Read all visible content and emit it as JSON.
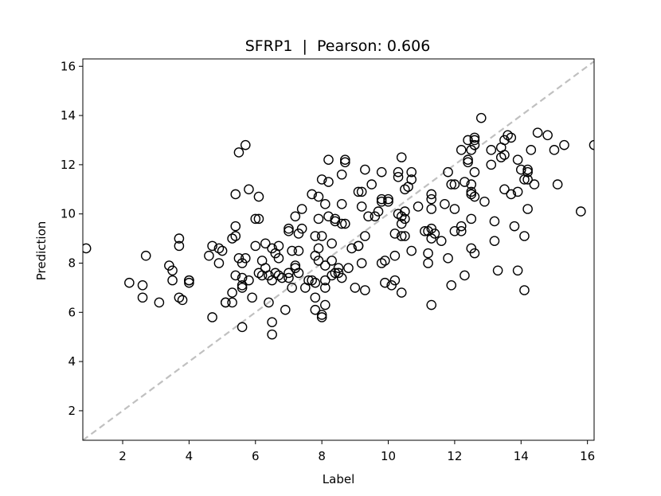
{
  "chart_data": {
    "type": "scatter",
    "title": "SFRP1  |  Pearson: 0.606",
    "xlabel": "Label",
    "ylabel": "Prediction",
    "xlim": [
      0.8,
      16.2
    ],
    "ylim": [
      0.8,
      16.3
    ],
    "xticks": [
      2,
      4,
      6,
      8,
      10,
      12,
      14,
      16
    ],
    "yticks": [
      2,
      4,
      6,
      8,
      10,
      12,
      14,
      16
    ],
    "grid": false,
    "reference_line": {
      "style": "dashed",
      "color": "#c0c0c0",
      "from": [
        0.8,
        0.8
      ],
      "to": [
        16.2,
        16.2
      ]
    },
    "marker": {
      "shape": "open-circle",
      "color": "#000000"
    },
    "points": [
      [
        0.9,
        8.6
      ],
      [
        2.2,
        7.2
      ],
      [
        2.6,
        7.1
      ],
      [
        2.6,
        6.6
      ],
      [
        2.7,
        8.3
      ],
      [
        3.1,
        6.4
      ],
      [
        3.4,
        7.9
      ],
      [
        3.5,
        7.7
      ],
      [
        3.5,
        7.3
      ],
      [
        3.7,
        6.6
      ],
      [
        3.7,
        8.7
      ],
      [
        3.7,
        9.0
      ],
      [
        3.8,
        6.5
      ],
      [
        4.0,
        7.3
      ],
      [
        4.0,
        7.2
      ],
      [
        4.0,
        7.3
      ],
      [
        4.6,
        8.3
      ],
      [
        4.7,
        8.7
      ],
      [
        4.7,
        5.8
      ],
      [
        4.9,
        8.6
      ],
      [
        4.9,
        8.0
      ],
      [
        5.0,
        8.5
      ],
      [
        5.1,
        6.4
      ],
      [
        5.1,
        6.4
      ],
      [
        5.3,
        6.4
      ],
      [
        5.3,
        9.0
      ],
      [
        5.3,
        6.8
      ],
      [
        5.4,
        9.1
      ],
      [
        5.4,
        9.5
      ],
      [
        5.4,
        10.8
      ],
      [
        5.4,
        7.5
      ],
      [
        5.5,
        12.5
      ],
      [
        5.5,
        8.2
      ],
      [
        5.6,
        8.0
      ],
      [
        5.6,
        7.0
      ],
      [
        5.6,
        5.4
      ],
      [
        5.6,
        7.4
      ],
      [
        5.6,
        7.1
      ],
      [
        5.7,
        12.8
      ],
      [
        5.7,
        8.2
      ],
      [
        5.8,
        7.3
      ],
      [
        5.8,
        11.0
      ],
      [
        5.9,
        6.6
      ],
      [
        6.0,
        8.7
      ],
      [
        6.0,
        9.8
      ],
      [
        6.1,
        9.8
      ],
      [
        6.1,
        10.7
      ],
      [
        6.1,
        7.6
      ],
      [
        6.2,
        7.5
      ],
      [
        6.2,
        8.1
      ],
      [
        6.3,
        8.8
      ],
      [
        6.3,
        7.8
      ],
      [
        6.4,
        6.4
      ],
      [
        6.4,
        7.5
      ],
      [
        6.5,
        7.3
      ],
      [
        6.5,
        8.6
      ],
      [
        6.5,
        5.6
      ],
      [
        6.5,
        5.1
      ],
      [
        6.6,
        7.6
      ],
      [
        6.6,
        8.4
      ],
      [
        6.7,
        8.7
      ],
      [
        6.7,
        8.2
      ],
      [
        6.7,
        7.5
      ],
      [
        6.8,
        7.4
      ],
      [
        6.9,
        6.1
      ],
      [
        7.0,
        7.4
      ],
      [
        7.0,
        7.6
      ],
      [
        7.0,
        9.4
      ],
      [
        7.0,
        9.3
      ],
      [
        7.1,
        7.0
      ],
      [
        7.1,
        8.5
      ],
      [
        7.2,
        9.9
      ],
      [
        7.2,
        7.9
      ],
      [
        7.2,
        7.8
      ],
      [
        7.3,
        7.6
      ],
      [
        7.3,
        8.5
      ],
      [
        7.3,
        9.2
      ],
      [
        7.4,
        9.4
      ],
      [
        7.4,
        10.2
      ],
      [
        7.5,
        7.0
      ],
      [
        7.6,
        7.3
      ],
      [
        7.7,
        10.8
      ],
      [
        7.7,
        7.3
      ],
      [
        7.8,
        8.3
      ],
      [
        7.8,
        9.1
      ],
      [
        7.8,
        7.2
      ],
      [
        7.8,
        6.1
      ],
      [
        7.8,
        6.6
      ],
      [
        7.9,
        10.7
      ],
      [
        7.9,
        9.8
      ],
      [
        7.9,
        8.6
      ],
      [
        7.9,
        8.1
      ],
      [
        8.0,
        5.9
      ],
      [
        8.0,
        5.8
      ],
      [
        8.0,
        9.1
      ],
      [
        8.0,
        11.4
      ],
      [
        8.1,
        10.4
      ],
      [
        8.1,
        7.9
      ],
      [
        8.1,
        7.3
      ],
      [
        8.1,
        7.0
      ],
      [
        8.1,
        6.3
      ],
      [
        8.2,
        11.3
      ],
      [
        8.2,
        12.2
      ],
      [
        8.2,
        9.9
      ],
      [
        8.3,
        8.8
      ],
      [
        8.3,
        8.1
      ],
      [
        8.3,
        7.5
      ],
      [
        8.4,
        9.8
      ],
      [
        8.4,
        9.7
      ],
      [
        8.4,
        7.6
      ],
      [
        8.5,
        7.8
      ],
      [
        8.5,
        7.6
      ],
      [
        8.6,
        7.4
      ],
      [
        8.6,
        9.6
      ],
      [
        8.6,
        11.6
      ],
      [
        8.6,
        10.4
      ],
      [
        8.7,
        12.1
      ],
      [
        8.7,
        12.2
      ],
      [
        8.7,
        9.6
      ],
      [
        8.8,
        7.8
      ],
      [
        8.9,
        8.6
      ],
      [
        9.0,
        7.0
      ],
      [
        9.1,
        10.9
      ],
      [
        9.1,
        8.7
      ],
      [
        9.1,
        8.7
      ],
      [
        9.2,
        10.9
      ],
      [
        9.2,
        10.3
      ],
      [
        9.2,
        8.0
      ],
      [
        9.3,
        11.8
      ],
      [
        9.3,
        9.1
      ],
      [
        9.3,
        6.9
      ],
      [
        9.4,
        9.9
      ],
      [
        9.5,
        11.2
      ],
      [
        9.6,
        9.9
      ],
      [
        9.7,
        10.1
      ],
      [
        9.8,
        11.7
      ],
      [
        9.8,
        10.6
      ],
      [
        9.8,
        10.5
      ],
      [
        9.8,
        8.0
      ],
      [
        9.9,
        7.2
      ],
      [
        9.9,
        8.1
      ],
      [
        10.0,
        10.5
      ],
      [
        10.0,
        10.6
      ],
      [
        10.1,
        7.1
      ],
      [
        10.2,
        8.3
      ],
      [
        10.2,
        9.2
      ],
      [
        10.2,
        7.3
      ],
      [
        10.3,
        11.7
      ],
      [
        10.3,
        11.5
      ],
      [
        10.3,
        10.0
      ],
      [
        10.4,
        9.6
      ],
      [
        10.4,
        9.1
      ],
      [
        10.4,
        12.3
      ],
      [
        10.4,
        9.9
      ],
      [
        10.4,
        6.8
      ],
      [
        10.5,
        10.1
      ],
      [
        10.5,
        9.8
      ],
      [
        10.5,
        11.0
      ],
      [
        10.5,
        9.1
      ],
      [
        10.6,
        11.1
      ],
      [
        10.7,
        11.7
      ],
      [
        10.7,
        11.4
      ],
      [
        10.7,
        8.5
      ],
      [
        10.9,
        10.3
      ],
      [
        11.1,
        9.3
      ],
      [
        11.2,
        8.0
      ],
      [
        11.2,
        9.3
      ],
      [
        11.2,
        8.4
      ],
      [
        11.3,
        10.8
      ],
      [
        11.3,
        10.6
      ],
      [
        11.3,
        10.2
      ],
      [
        11.3,
        9.4
      ],
      [
        11.3,
        9.0
      ],
      [
        11.3,
        6.3
      ],
      [
        11.4,
        9.2
      ],
      [
        11.6,
        8.9
      ],
      [
        11.7,
        10.4
      ],
      [
        11.8,
        11.7
      ],
      [
        11.8,
        8.2
      ],
      [
        11.9,
        11.2
      ],
      [
        11.9,
        7.1
      ],
      [
        12.0,
        9.3
      ],
      [
        12.0,
        10.2
      ],
      [
        12.0,
        11.2
      ],
      [
        12.2,
        9.5
      ],
      [
        12.2,
        9.3
      ],
      [
        12.2,
        12.6
      ],
      [
        12.3,
        11.3
      ],
      [
        12.3,
        7.5
      ],
      [
        12.4,
        13.0
      ],
      [
        12.4,
        12.2
      ],
      [
        12.4,
        12.1
      ],
      [
        12.5,
        11.2
      ],
      [
        12.5,
        10.9
      ],
      [
        12.5,
        10.8
      ],
      [
        12.5,
        9.8
      ],
      [
        12.5,
        8.6
      ],
      [
        12.5,
        12.6
      ],
      [
        12.6,
        13.1
      ],
      [
        12.6,
        13.0
      ],
      [
        12.6,
        12.8
      ],
      [
        12.6,
        11.7
      ],
      [
        12.6,
        10.7
      ],
      [
        12.6,
        8.4
      ],
      [
        12.8,
        13.9
      ],
      [
        12.9,
        10.5
      ],
      [
        13.1,
        12.6
      ],
      [
        13.1,
        12.0
      ],
      [
        13.2,
        9.7
      ],
      [
        13.2,
        8.9
      ],
      [
        13.3,
        7.7
      ],
      [
        13.4,
        12.7
      ],
      [
        13.4,
        12.3
      ],
      [
        13.5,
        13.0
      ],
      [
        13.5,
        12.4
      ],
      [
        13.5,
        11.0
      ],
      [
        13.6,
        13.2
      ],
      [
        13.7,
        13.1
      ],
      [
        13.7,
        10.8
      ],
      [
        13.8,
        9.5
      ],
      [
        13.9,
        10.9
      ],
      [
        13.9,
        12.2
      ],
      [
        13.9,
        7.7
      ],
      [
        14.0,
        11.8
      ],
      [
        14.1,
        11.4
      ],
      [
        14.1,
        9.1
      ],
      [
        14.1,
        6.9
      ],
      [
        14.2,
        11.4
      ],
      [
        14.2,
        11.8
      ],
      [
        14.2,
        11.7
      ],
      [
        14.2,
        10.2
      ],
      [
        14.3,
        12.6
      ],
      [
        14.4,
        11.2
      ],
      [
        14.5,
        13.3
      ],
      [
        14.8,
        13.2
      ],
      [
        15.0,
        12.6
      ],
      [
        15.1,
        11.2
      ],
      [
        15.3,
        12.8
      ],
      [
        15.8,
        10.1
      ],
      [
        16.2,
        12.8
      ]
    ]
  }
}
